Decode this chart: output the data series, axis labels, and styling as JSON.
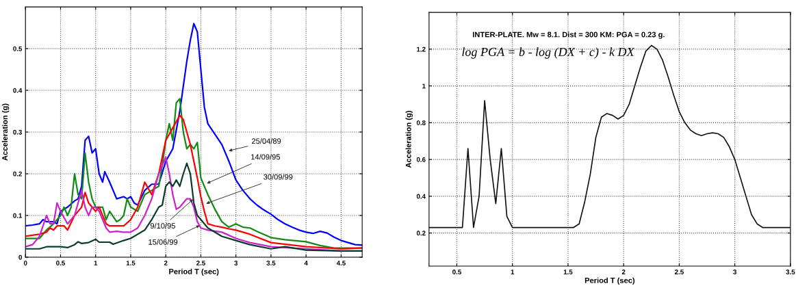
{
  "chart_data": [
    {
      "type": "line",
      "xlabel": "Period T (sec)",
      "ylabel": "Acceleration (g)",
      "xlim": [
        0,
        4.8
      ],
      "ylim": [
        0,
        0.6
      ],
      "xticks": [
        0,
        0.5,
        1,
        1.5,
        2,
        2.5,
        3,
        3.5,
        4,
        4.5
      ],
      "yticks": [
        0,
        0.1,
        0.2,
        0.3,
        0.4,
        0.5
      ],
      "grid": true,
      "line_style": "solid",
      "marker": "none",
      "series": [
        {
          "color": "#0000ff",
          "x": [
            0,
            0.1,
            0.2,
            0.25,
            0.3,
            0.4,
            0.45,
            0.5,
            0.6,
            0.7,
            0.75,
            0.8,
            0.85,
            0.9,
            0.95,
            1.0,
            1.05,
            1.1,
            1.13,
            1.2,
            1.3,
            1.4,
            1.45,
            1.5,
            1.55,
            1.6,
            1.7,
            1.8,
            1.9,
            2.0,
            2.1,
            2.2,
            2.3,
            2.35,
            2.4,
            2.45,
            2.5,
            2.55,
            2.6,
            2.7,
            2.8,
            2.9,
            3.0,
            3.1,
            3.2,
            3.3,
            3.4,
            3.5,
            3.6,
            3.7,
            3.8,
            3.9,
            4.0,
            4.1,
            4.2,
            4.3,
            4.4,
            4.5,
            4.6,
            4.7,
            4.8
          ],
          "values": [
            0.075,
            0.077,
            0.08,
            0.09,
            0.085,
            0.085,
            0.08,
            0.11,
            0.12,
            0.135,
            0.14,
            0.17,
            0.28,
            0.29,
            0.25,
            0.26,
            0.2,
            0.18,
            0.205,
            0.18,
            0.14,
            0.145,
            0.14,
            0.145,
            0.13,
            0.125,
            0.16,
            0.175,
            0.175,
            0.23,
            0.26,
            0.35,
            0.47,
            0.52,
            0.56,
            0.54,
            0.45,
            0.36,
            0.32,
            0.295,
            0.27,
            0.23,
            0.185,
            0.16,
            0.14,
            0.125,
            0.113,
            0.103,
            0.09,
            0.08,
            0.072,
            0.065,
            0.06,
            0.057,
            0.062,
            0.058,
            0.048,
            0.04,
            0.035,
            0.03,
            0.029
          ]
        },
        {
          "color": "#138a13",
          "x": [
            0,
            0.2,
            0.3,
            0.4,
            0.5,
            0.55,
            0.6,
            0.65,
            0.7,
            0.75,
            0.8,
            0.85,
            0.9,
            0.95,
            1.0,
            1.05,
            1.1,
            1.15,
            1.2,
            1.3,
            1.35,
            1.4,
            1.45,
            1.5,
            1.6,
            1.7,
            1.8,
            1.9,
            1.95,
            2.0,
            2.05,
            2.1,
            2.15,
            2.2,
            2.25,
            2.3,
            2.35,
            2.4,
            2.45,
            2.5,
            2.6,
            2.7,
            2.8,
            2.9,
            3.0,
            3.1,
            3.2,
            3.3,
            3.5,
            3.7,
            4.0,
            4.2,
            4.4,
            4.8
          ],
          "values": [
            0.045,
            0.045,
            0.065,
            0.08,
            0.1,
            0.12,
            0.1,
            0.12,
            0.2,
            0.15,
            0.14,
            0.25,
            0.18,
            0.14,
            0.12,
            0.12,
            0.12,
            0.09,
            0.11,
            0.085,
            0.09,
            0.1,
            0.14,
            0.12,
            0.11,
            0.15,
            0.16,
            0.17,
            0.22,
            0.28,
            0.32,
            0.28,
            0.37,
            0.38,
            0.3,
            0.26,
            0.27,
            0.26,
            0.275,
            0.19,
            0.15,
            0.115,
            0.085,
            0.072,
            0.08,
            0.072,
            0.07,
            0.062,
            0.047,
            0.042,
            0.037,
            0.028,
            0.022,
            0.022
          ]
        },
        {
          "color": "#ff0000",
          "x": [
            0,
            0.2,
            0.3,
            0.35,
            0.4,
            0.45,
            0.5,
            0.55,
            0.6,
            0.7,
            0.75,
            0.8,
            0.85,
            0.9,
            0.95,
            1.0,
            1.05,
            1.1,
            1.15,
            1.2,
            1.4,
            1.5,
            1.6,
            1.7,
            1.8,
            1.9,
            2.0,
            2.1,
            2.2,
            2.25,
            2.3,
            2.35,
            2.4,
            2.45,
            2.5,
            2.55,
            2.6,
            2.7,
            2.8,
            2.9,
            3.0,
            3.2,
            3.5,
            4.0,
            4.5,
            4.8
          ],
          "values": [
            0.05,
            0.055,
            0.06,
            0.07,
            0.065,
            0.075,
            0.075,
            0.075,
            0.065,
            0.1,
            0.11,
            0.12,
            0.155,
            0.13,
            0.12,
            0.11,
            0.12,
            0.1,
            0.08,
            0.075,
            0.075,
            0.09,
            0.12,
            0.18,
            0.15,
            0.2,
            0.28,
            0.31,
            0.34,
            0.33,
            0.3,
            0.27,
            0.23,
            0.19,
            0.145,
            0.11,
            0.08,
            0.075,
            0.072,
            0.068,
            0.065,
            0.055,
            0.035,
            0.025,
            0.02,
            0.022
          ]
        },
        {
          "color": "#cc22cc",
          "x": [
            0,
            0.1,
            0.2,
            0.3,
            0.35,
            0.4,
            0.45,
            0.5,
            0.6,
            0.7,
            0.8,
            0.85,
            0.9,
            0.95,
            1.0,
            1.05,
            1.1,
            1.15,
            1.2,
            1.3,
            1.4,
            1.5,
            1.6,
            1.7,
            1.8,
            1.9,
            2.0,
            2.05,
            2.1,
            2.15,
            2.2,
            2.3,
            2.35,
            2.4,
            2.45,
            2.5,
            2.6,
            2.8,
            3.0,
            3.2,
            3.5,
            4.0,
            4.5,
            4.8
          ],
          "values": [
            0.025,
            0.03,
            0.05,
            0.1,
            0.08,
            0.08,
            0.13,
            0.11,
            0.08,
            0.1,
            0.16,
            0.12,
            0.1,
            0.12,
            0.12,
            0.11,
            0.09,
            0.07,
            0.06,
            0.062,
            0.06,
            0.06,
            0.07,
            0.1,
            0.14,
            0.2,
            0.24,
            0.2,
            0.15,
            0.115,
            0.12,
            0.14,
            0.14,
            0.12,
            0.085,
            0.07,
            0.065,
            0.06,
            0.045,
            0.035,
            0.025,
            0.02,
            0.015,
            0.015
          ]
        },
        {
          "color": "#0b3b2b",
          "x": [
            0,
            0.2,
            0.3,
            0.5,
            0.6,
            0.7,
            0.75,
            0.8,
            0.9,
            1.0,
            1.05,
            1.2,
            1.25,
            1.4,
            1.5,
            1.6,
            1.7,
            1.8,
            1.9,
            1.95,
            2.0,
            2.05,
            2.1,
            2.15,
            2.2,
            2.25,
            2.3,
            2.35,
            2.4,
            2.45,
            2.5,
            2.6,
            2.8,
            3.0,
            3.2,
            3.5,
            3.7,
            4.0,
            4.5,
            4.8
          ],
          "values": [
            0.02,
            0.02,
            0.025,
            0.025,
            0.023,
            0.03,
            0.037,
            0.033,
            0.035,
            0.043,
            0.036,
            0.036,
            0.031,
            0.04,
            0.045,
            0.055,
            0.065,
            0.09,
            0.12,
            0.125,
            0.17,
            0.18,
            0.17,
            0.185,
            0.17,
            0.2,
            0.225,
            0.2,
            0.13,
            0.1,
            0.09,
            0.07,
            0.05,
            0.04,
            0.03,
            0.02,
            0.025,
            0.017,
            0.015,
            0.015
          ]
        }
      ],
      "annotations": [
        {
          "text": "25/04/89",
          "x": 2.87,
          "y": 0.254
        },
        {
          "text": "14/09/95",
          "x": 2.56,
          "y": 0.175
        },
        {
          "text": "30/09/99",
          "x": 2.55,
          "y": 0.127
        },
        {
          "text": "9/10/95",
          "x": 2.41,
          "y": 0.142
        },
        {
          "text": "15/06/99",
          "x": 2.51,
          "y": 0.078
        }
      ]
    },
    {
      "type": "line",
      "xlabel": "Period T (sec)",
      "ylabel": "Acceleration (g)",
      "xlim": [
        0.25,
        3.5
      ],
      "ylim": [
        0.02,
        1.4
      ],
      "xticks": [
        0.5,
        1,
        1.5,
        2,
        2.5,
        3,
        3.5
      ],
      "yticks": [
        0.2,
        0.4,
        0.6,
        0.8,
        1,
        1.2
      ],
      "grid": true,
      "line_style": "solid",
      "marker": "none",
      "series": [
        {
          "color": "#111111",
          "x": [
            0.25,
            0.55,
            0.6,
            0.65,
            0.7,
            0.75,
            0.8,
            0.85,
            0.9,
            0.95,
            1.0,
            1.55,
            1.6,
            1.65,
            1.7,
            1.75,
            1.8,
            1.85,
            1.9,
            1.95,
            2.0,
            2.05,
            2.1,
            2.15,
            2.2,
            2.25,
            2.3,
            2.35,
            2.4,
            2.45,
            2.5,
            2.55,
            2.6,
            2.65,
            2.7,
            2.75,
            2.8,
            2.85,
            2.9,
            2.95,
            3.0,
            3.05,
            3.1,
            3.15,
            3.2,
            3.25,
            3.5
          ],
          "values": [
            0.23,
            0.23,
            0.66,
            0.23,
            0.4,
            0.92,
            0.6,
            0.36,
            0.66,
            0.29,
            0.23,
            0.23,
            0.25,
            0.37,
            0.52,
            0.72,
            0.83,
            0.85,
            0.84,
            0.82,
            0.84,
            0.9,
            1.0,
            1.1,
            1.19,
            1.22,
            1.2,
            1.14,
            1.05,
            0.95,
            0.86,
            0.8,
            0.76,
            0.74,
            0.73,
            0.74,
            0.745,
            0.74,
            0.72,
            0.67,
            0.6,
            0.5,
            0.4,
            0.3,
            0.25,
            0.23,
            0.23
          ]
        }
      ],
      "annotations": [
        "INTER-PLATE. Mw = 8.1. Dist = 300 KM: PGA = 0.23 g.",
        "log PGA = b - log (DX + c) - k DX"
      ]
    }
  ]
}
